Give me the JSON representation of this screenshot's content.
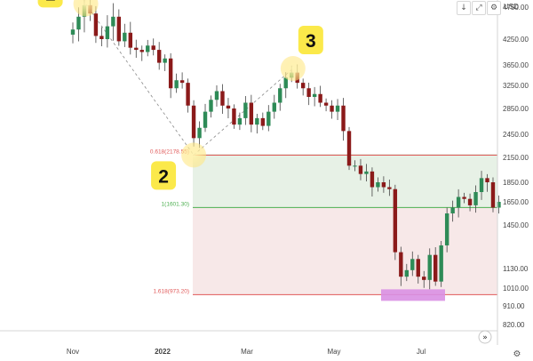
{
  "chart_data": {
    "type": "candlestick",
    "currency": "USD",
    "x_labels": [
      "Nov",
      "2022",
      "Mar",
      "May",
      "Jul"
    ],
    "y_ticks": [
      "4750.00",
      "4250.00",
      "3650.00",
      "3250.00",
      "2850.00",
      "2450.00",
      "2150.00",
      "1850.00",
      "1650.00",
      "1450.00",
      "1130.00",
      "1010.00",
      "910.00",
      "820.00"
    ],
    "fib_levels": [
      {
        "label": "0.618(2178.55)",
        "value": 2178.55,
        "color": "#e05858"
      },
      {
        "label": "1(1601.30)",
        "value": 1601.3,
        "color": "#4caf50"
      },
      {
        "label": "1.618(973.20)",
        "value": 973.2,
        "color": "#e05858"
      }
    ],
    "pivot_markers": [
      {
        "label": "1",
        "date": "2021-11-10",
        "price": 4800
      },
      {
        "label": "2",
        "date": "2022-01-24",
        "price": 2180
      },
      {
        "label": "3",
        "date": "2022-04-03",
        "price": 3580
      }
    ],
    "closes": [
      {
        "date": "2021-10-28",
        "close": 4320
      },
      {
        "date": "2021-11-01",
        "close": 4400
      },
      {
        "date": "2021-11-05",
        "close": 4600
      },
      {
        "date": "2021-11-09",
        "close": 4780
      },
      {
        "date": "2021-11-13",
        "close": 4650
      },
      {
        "date": "2021-11-17",
        "close": 4300
      },
      {
        "date": "2021-11-21",
        "close": 4250
      },
      {
        "date": "2021-11-25",
        "close": 4450
      },
      {
        "date": "2021-11-29",
        "close": 4600
      },
      {
        "date": "2021-12-03",
        "close": 4200
      },
      {
        "date": "2021-12-07",
        "close": 4350
      },
      {
        "date": "2021-12-11",
        "close": 4050
      },
      {
        "date": "2021-12-15",
        "close": 4000
      },
      {
        "date": "2021-12-19",
        "close": 3950
      },
      {
        "date": "2021-12-23",
        "close": 4100
      },
      {
        "date": "2021-12-27",
        "close": 4000
      },
      {
        "date": "2021-12-31",
        "close": 3700
      },
      {
        "date": "2022-01-04",
        "close": 3800
      },
      {
        "date": "2022-01-08",
        "close": 3200
      },
      {
        "date": "2022-01-12",
        "close": 3350
      },
      {
        "date": "2022-01-16",
        "close": 3300
      },
      {
        "date": "2022-01-20",
        "close": 2900
      },
      {
        "date": "2022-01-24",
        "close": 2400
      },
      {
        "date": "2022-01-28",
        "close": 2550
      },
      {
        "date": "2022-02-01",
        "close": 2800
      },
      {
        "date": "2022-02-05",
        "close": 3000
      },
      {
        "date": "2022-02-09",
        "close": 3150
      },
      {
        "date": "2022-02-13",
        "close": 2900
      },
      {
        "date": "2022-02-17",
        "close": 2850
      },
      {
        "date": "2022-02-21",
        "close": 2600
      },
      {
        "date": "2022-02-25",
        "close": 2700
      },
      {
        "date": "2022-03-01",
        "close": 2950
      },
      {
        "date": "2022-03-05",
        "close": 2600
      },
      {
        "date": "2022-03-09",
        "close": 2700
      },
      {
        "date": "2022-03-13",
        "close": 2580
      },
      {
        "date": "2022-03-17",
        "close": 2800
      },
      {
        "date": "2022-03-21",
        "close": 2950
      },
      {
        "date": "2022-03-25",
        "close": 3200
      },
      {
        "date": "2022-03-29",
        "close": 3400
      },
      {
        "date": "2022-04-02",
        "close": 3500
      },
      {
        "date": "2022-04-06",
        "close": 3300
      },
      {
        "date": "2022-04-10",
        "close": 3200
      },
      {
        "date": "2022-04-14",
        "close": 3050
      },
      {
        "date": "2022-04-18",
        "close": 3100
      },
      {
        "date": "2022-04-22",
        "close": 2950
      },
      {
        "date": "2022-04-26",
        "close": 2900
      },
      {
        "date": "2022-04-30",
        "close": 2800
      },
      {
        "date": "2022-05-04",
        "close": 2900
      },
      {
        "date": "2022-05-08",
        "close": 2500
      },
      {
        "date": "2022-05-12",
        "close": 2050
      },
      {
        "date": "2022-05-16",
        "close": 2050
      },
      {
        "date": "2022-05-20",
        "close": 1950
      },
      {
        "date": "2022-05-24",
        "close": 1980
      },
      {
        "date": "2022-05-28",
        "close": 1800
      },
      {
        "date": "2022-06-01",
        "close": 1850
      },
      {
        "date": "2022-06-05",
        "close": 1800
      },
      {
        "date": "2022-06-09",
        "close": 1780
      },
      {
        "date": "2022-06-13",
        "close": 1250
      },
      {
        "date": "2022-06-17",
        "close": 1080
      },
      {
        "date": "2022-06-21",
        "close": 1120
      },
      {
        "date": "2022-06-25",
        "close": 1200
      },
      {
        "date": "2022-06-29",
        "close": 1080
      },
      {
        "date": "2022-07-03",
        "close": 1060
      },
      {
        "date": "2022-07-07",
        "close": 1230
      },
      {
        "date": "2022-07-11",
        "close": 1050
      },
      {
        "date": "2022-07-15",
        "close": 1300
      },
      {
        "date": "2022-07-19",
        "close": 1550
      },
      {
        "date": "2022-07-23",
        "close": 1600
      },
      {
        "date": "2022-07-27",
        "close": 1700
      },
      {
        "date": "2022-07-31",
        "close": 1680
      },
      {
        "date": "2022-08-04",
        "close": 1620
      },
      {
        "date": "2022-08-08",
        "close": 1750
      },
      {
        "date": "2022-08-12",
        "close": 1900
      },
      {
        "date": "2022-08-16",
        "close": 1850
      },
      {
        "date": "2022-08-20",
        "close": 1600
      },
      {
        "date": "2022-08-24",
        "close": 1650
      }
    ]
  },
  "toolbar": {
    "arrow_down": "↓",
    "expand": "⤢",
    "settings": "⚙"
  },
  "nav": {
    "scroll_forward": "»"
  },
  "footer": {
    "settings": "⚙"
  }
}
